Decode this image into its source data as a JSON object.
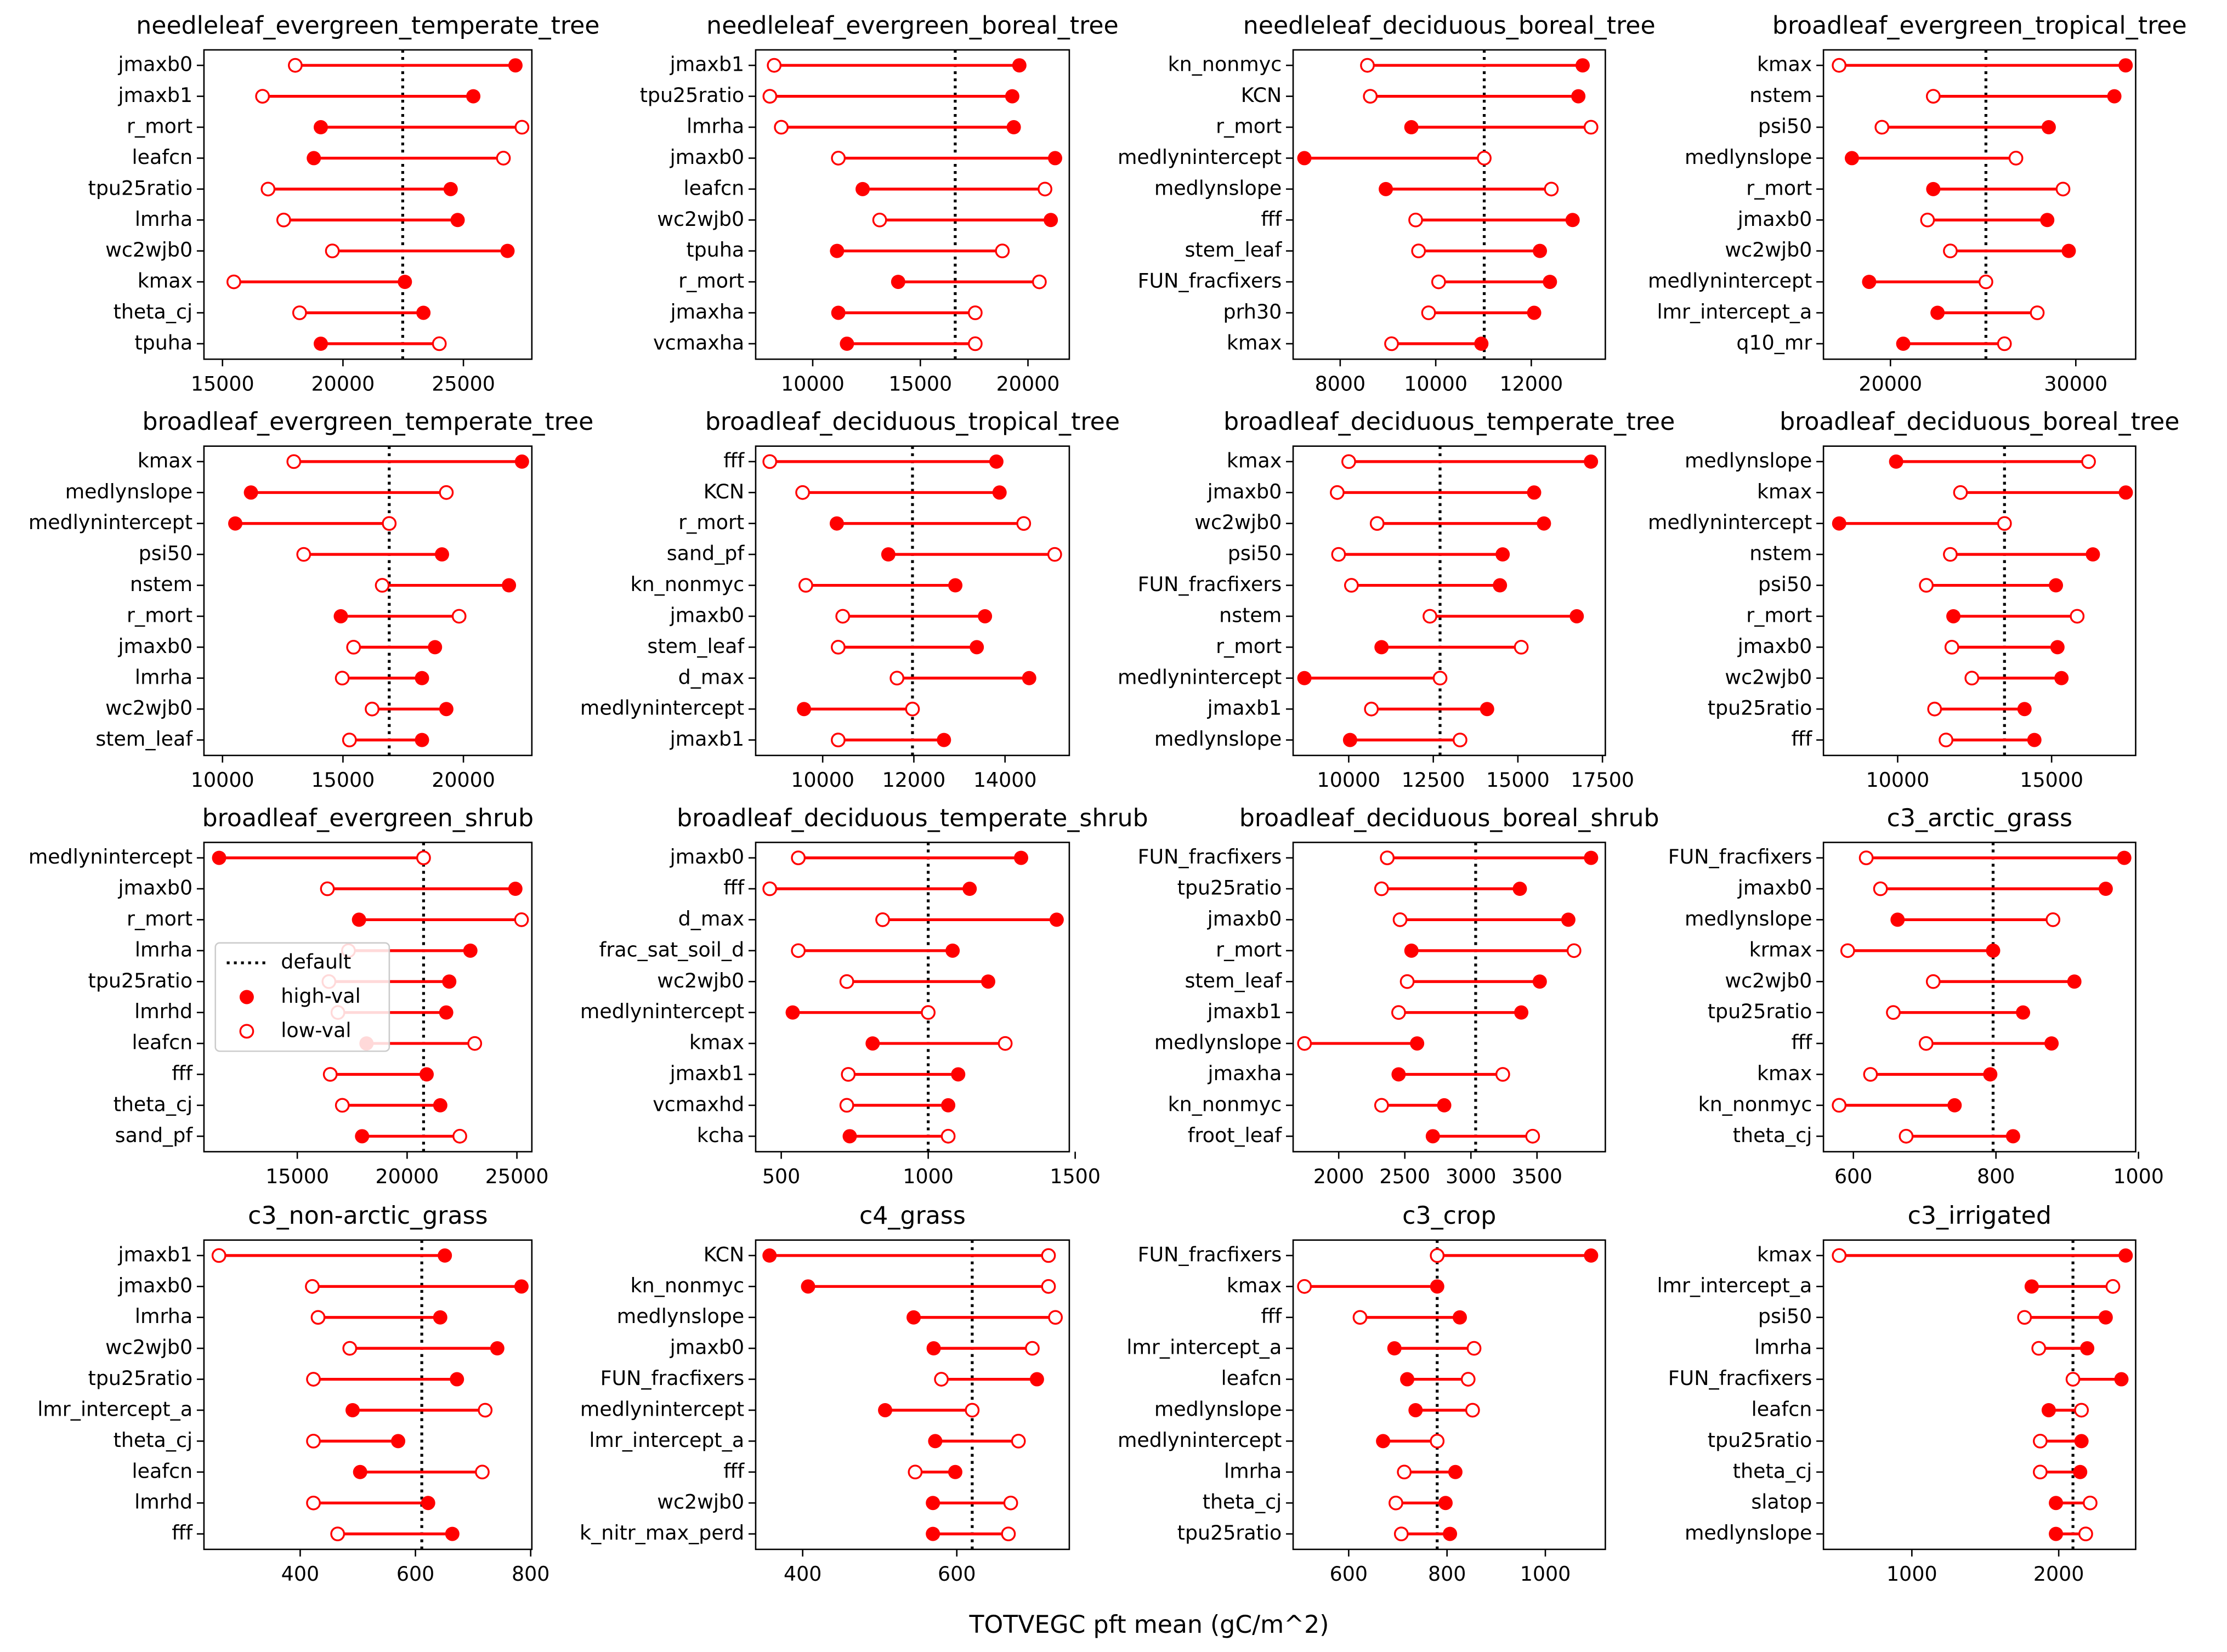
{
  "xlabel": "TOTVEGC pft mean (gC/m^2)",
  "color": "#ff0000",
  "chart_data": [
    {
      "type": "dumbbell",
      "title": "needleleaf_evergreen_temperate_tree",
      "categories": [
        "jmaxb0",
        "jmaxb1",
        "r_mort",
        "leafcn",
        "tpu25ratio",
        "lmrha",
        "wc2wjb0",
        "kmax",
        "theta_cj",
        "tpuha"
      ],
      "high_values": [
        27160,
        25410,
        19080,
        18790,
        24470,
        24760,
        26830,
        22570,
        23340,
        19080
      ],
      "low_values": [
        18020,
        16660,
        27430,
        26660,
        16890,
        17540,
        19560,
        15470,
        18200,
        24000
      ],
      "default": 22480,
      "xlim": [
        14230,
        27840
      ],
      "xticks": [
        15000,
        20000,
        25000
      ]
    },
    {
      "type": "dumbbell",
      "title": "needleleaf_evergreen_boreal_tree",
      "categories": [
        "jmaxb1",
        "tpu25ratio",
        "lmrha",
        "jmaxb0",
        "leafcn",
        "wc2wjb0",
        "tpuha",
        "r_mort",
        "jmaxha",
        "vcmaxha"
      ],
      "high_values": [
        19600,
        19270,
        19340,
        21260,
        12320,
        21060,
        11130,
        13970,
        11190,
        11590
      ],
      "low_values": [
        8210,
        8010,
        8540,
        11190,
        20790,
        13110,
        18810,
        20530,
        17550,
        17550
      ],
      "default": 16620,
      "xlim": [
        7350,
        21920
      ],
      "xticks": [
        10000,
        15000,
        20000
      ]
    },
    {
      "type": "dumbbell",
      "title": "needleleaf_deciduous_boreal_tree",
      "categories": [
        "kn_nonmyc",
        "KCN",
        "r_mort",
        "medlynintercept",
        "medlynslope",
        "fff",
        "stem_leaf",
        "FUN_fracfixers",
        "prh30",
        "kmax"
      ],
      "high_values": [
        13075,
        12985,
        9490,
        7250,
        8955,
        12865,
        12180,
        12390,
        12060,
        10955
      ],
      "low_values": [
        8570,
        8630,
        13250,
        11015,
        12420,
        9580,
        9640,
        10060,
        9850,
        9075
      ],
      "default": 11015,
      "xlim": [
        7015,
        13550
      ],
      "xticks": [
        8000,
        10000,
        12000
      ]
    },
    {
      "type": "dumbbell",
      "title": "broadleaf_evergreen_tropical_tree",
      "categories": [
        "kmax",
        "nstem",
        "psi50",
        "medlynslope",
        "r_mort",
        "jmaxb0",
        "wc2wjb0",
        "medlynintercept",
        "lmr_intercept_a",
        "q10_mr"
      ],
      "high_values": [
        32690,
        32080,
        28540,
        17920,
        22310,
        28460,
        29620,
        18850,
        22540,
        20690
      ],
      "low_values": [
        17230,
        22310,
        19540,
        26770,
        29310,
        22000,
        23230,
        25150,
        27920,
        26150
      ],
      "default": 25150,
      "xlim": [
        16385,
        33230
      ],
      "xticks": [
        20000,
        30000
      ]
    },
    {
      "type": "dumbbell",
      "title": "broadleaf_evergreen_temperate_tree",
      "categories": [
        "kmax",
        "medlynslope",
        "medlynintercept",
        "psi50",
        "nstem",
        "r_mort",
        "jmaxb0",
        "lmrha",
        "wc2wjb0",
        "stem_leaf"
      ],
      "high_values": [
        22430,
        11180,
        10530,
        19110,
        21890,
        14910,
        18820,
        18280,
        19290,
        18280
      ],
      "low_values": [
        12960,
        19290,
        16920,
        13370,
        16630,
        19820,
        15440,
        14970,
        16210,
        15270
      ],
      "default": 16920,
      "xlim": [
        9230,
        22840
      ],
      "xticks": [
        10000,
        15000,
        20000
      ]
    },
    {
      "type": "dumbbell",
      "title": "broadleaf_deciduous_tropical_tree",
      "categories": [
        "fff",
        "KCN",
        "r_mort",
        "sand_pf",
        "kn_nonmyc",
        "jmaxb0",
        "stem_leaf",
        "d_max",
        "medlynintercept",
        "jmaxb1"
      ],
      "high_values": [
        13810,
        13880,
        10310,
        11440,
        12910,
        13560,
        13380,
        14530,
        9590,
        12660
      ],
      "low_values": [
        8840,
        9560,
        14410,
        15090,
        9630,
        10440,
        10340,
        11630,
        11970,
        10340
      ],
      "default": 11970,
      "xlim": [
        8530,
        15410
      ],
      "xticks": [
        10000,
        12000,
        14000
      ]
    },
    {
      "type": "dumbbell",
      "title": "broadleaf_deciduous_temperate_tree",
      "categories": [
        "kmax",
        "jmaxb0",
        "wc2wjb0",
        "psi50",
        "FUN_fracfixers",
        "nstem",
        "r_mort",
        "medlynintercept",
        "jmaxb1",
        "medlynslope"
      ],
      "high_values": [
        17160,
        15480,
        15770,
        14550,
        14470,
        16740,
        10970,
        8690,
        14090,
        10040
      ],
      "low_values": [
        10000,
        9660,
        10840,
        9700,
        10080,
        12400,
        15100,
        12700,
        10670,
        13290
      ],
      "default": 12700,
      "xlim": [
        8357,
        17585
      ],
      "xticks": [
        10000,
        12500,
        15000,
        17500
      ]
    },
    {
      "type": "dumbbell",
      "title": "broadleaf_deciduous_boreal_tree",
      "categories": [
        "medlynslope",
        "kmax",
        "medlynintercept",
        "nstem",
        "psi50",
        "r_mort",
        "jmaxb0",
        "wc2wjb0",
        "tpu25ratio",
        "fff"
      ],
      "high_values": [
        9950,
        17410,
        8100,
        16340,
        15140,
        11810,
        15190,
        15320,
        14120,
        14440
      ],
      "low_values": [
        16200,
        12040,
        13470,
        11710,
        10930,
        15830,
        11760,
        12410,
        11200,
        11570
      ],
      "default": 13470,
      "xlim": [
        7590,
        17730
      ],
      "xticks": [
        10000,
        15000
      ]
    },
    {
      "type": "dumbbell",
      "title": "broadleaf_evergreen_shrub",
      "categories": [
        "medlynintercept",
        "jmaxb0",
        "r_mort",
        "lmrha",
        "tpu25ratio",
        "lmrhd",
        "leafcn",
        "fff",
        "theta_cj",
        "sand_pf"
      ],
      "high_values": [
        11440,
        24930,
        17810,
        22880,
        21920,
        21780,
        18150,
        20890,
        21510,
        17950
      ],
      "low_values": [
        20750,
        16370,
        25210,
        17330,
        16440,
        16850,
        23080,
        16500,
        17050,
        22400
      ],
      "default": 20750,
      "xlim": [
        10750,
        25680
      ],
      "xticks": [
        15000,
        20000,
        25000
      ],
      "legend": {
        "loc": "center left",
        "default": "default",
        "high": "high-val",
        "low": "low-val"
      }
    },
    {
      "type": "dumbbell",
      "title": "broadleaf_deciduous_temperate_shrub",
      "categories": [
        "jmaxb0",
        "fff",
        "d_max",
        "frac_sat_soil_d",
        "wc2wjb0",
        "medlynintercept",
        "kmax",
        "jmaxb1",
        "vcmaxhd",
        "kcha"
      ],
      "high_values": [
        1316,
        1141,
        1437,
        1083,
        1204,
        539,
        811,
        1102,
        1068,
        733
      ],
      "low_values": [
        558,
        461,
        845,
        558,
        723,
        1000,
        1262,
        728,
        723,
        1068
      ],
      "default": 1000,
      "xlim": [
        413,
        1480
      ],
      "xticks": [
        500,
        1000,
        1500
      ]
    },
    {
      "type": "dumbbell",
      "title": "broadleaf_deciduous_boreal_shrub",
      "categories": [
        "FUN_fracfixers",
        "tpu25ratio",
        "jmaxb0",
        "r_mort",
        "stem_leaf",
        "jmaxb1",
        "medlynslope",
        "jmaxha",
        "kn_nonmyc",
        "froot_leaf"
      ],
      "high_values": [
        3909,
        3370,
        3737,
        2550,
        3521,
        3381,
        2593,
        2453,
        2798,
        2712
      ],
      "low_values": [
        2367,
        2324,
        2464,
        3780,
        2518,
        2453,
        1741,
        3241,
        2324,
        3467
      ],
      "default": 3036,
      "xlim": [
        1655,
        4017
      ],
      "xticks": [
        2000,
        2500,
        3000,
        3500
      ]
    },
    {
      "type": "dumbbell",
      "title": "c3_arctic_grass",
      "categories": [
        "FUN_fracfixers",
        "jmaxb0",
        "medlynslope",
        "krmax",
        "wc2wjb0",
        "tpu25ratio",
        "fff",
        "kmax",
        "kn_nonmyc",
        "theta_cj"
      ],
      "high_values": [
        980,
        954,
        662,
        796,
        910,
        838,
        878,
        792,
        742,
        824
      ],
      "low_values": [
        618,
        638,
        880,
        592,
        712,
        656,
        702,
        624,
        580,
        674
      ],
      "default": 796,
      "xlim": [
        558,
        996
      ],
      "xticks": [
        600,
        800,
        1000
      ]
    },
    {
      "type": "dumbbell",
      "title": "c3_non-arctic_grass",
      "categories": [
        "jmaxb1",
        "jmaxb0",
        "lmrha",
        "wc2wjb0",
        "tpu25ratio",
        "lmr_intercept_a",
        "theta_cj",
        "leafcn",
        "lmrhd",
        "fff"
      ],
      "high_values": [
        651,
        784,
        643,
        742,
        672,
        491,
        570,
        504,
        622,
        664
      ],
      "low_values": [
        259,
        421,
        431,
        486,
        423,
        721,
        423,
        716,
        423,
        465
      ],
      "default": 611,
      "xlim": [
        233,
        802
      ],
      "xticks": [
        400,
        600,
        800
      ]
    },
    {
      "type": "dumbbell",
      "title": "c4_grass",
      "categories": [
        "KCN",
        "kn_nonmyc",
        "medlynslope",
        "jmaxb0",
        "FUN_fracfixers",
        "medlynintercept",
        "lmr_intercept_a",
        "fff",
        "wc2wjb0",
        "k_nitr_max_perd"
      ],
      "high_values": [
        357,
        407,
        544,
        570,
        704,
        507,
        572,
        598,
        569,
        569
      ],
      "low_values": [
        719,
        719,
        728,
        698,
        580,
        620,
        680,
        546,
        670,
        667
      ],
      "default": 620,
      "xlim": [
        339,
        746
      ],
      "xticks": [
        400,
        600
      ]
    },
    {
      "type": "dumbbell",
      "title": "c3_crop",
      "categories": [
        "FUN_fracfixers",
        "kmax",
        "fff",
        "lmr_intercept_a",
        "leafcn",
        "medlynslope",
        "medlynintercept",
        "lmrha",
        "theta_cj",
        "tpu25ratio"
      ],
      "high_values": [
        1093,
        780,
        826,
        693,
        719,
        736,
        670,
        817,
        797,
        806
      ],
      "low_values": [
        780,
        510,
        623,
        855,
        843,
        852,
        780,
        713,
        696,
        707
      ],
      "default": 780,
      "xlim": [
        487,
        1122
      ],
      "xticks": [
        600,
        800,
        1000
      ]
    },
    {
      "type": "dumbbell",
      "title": "c3_irrigated",
      "categories": [
        "kmax",
        "lmr_intercept_a",
        "psi50",
        "lmrha",
        "FUN_fracfixers",
        "leafcn",
        "tpu25ratio",
        "theta_cj",
        "slatop",
        "medlynslope"
      ],
      "high_values": [
        2456,
        1816,
        2320,
        2194,
        2427,
        1932,
        2155,
        2146,
        1981,
        1981
      ],
      "low_values": [
        505,
        2369,
        1767,
        1864,
        2097,
        2155,
        1874,
        1874,
        2214,
        2184
      ],
      "default": 2097,
      "xlim": [
        398,
        2524
      ],
      "xticks": [
        1000,
        2000
      ]
    }
  ]
}
